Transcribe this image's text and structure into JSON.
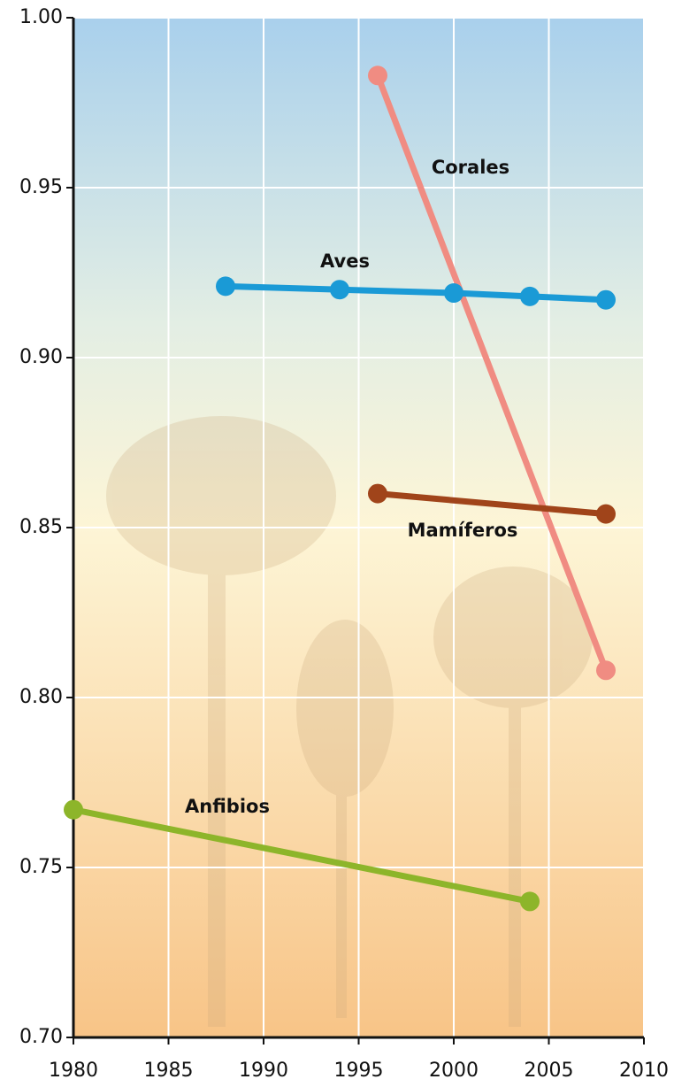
{
  "chart_data": {
    "type": "line",
    "xlim": [
      1980,
      2010
    ],
    "xticks": [
      1980,
      1985,
      1990,
      1995,
      2000,
      2005,
      2010
    ],
    "ylim": [
      0.7,
      1.0
    ],
    "yticks": [
      {
        "value": 0.7,
        "label": "0.70"
      },
      0.75,
      {
        "value": 0.8,
        "label": "0.80"
      },
      0.85,
      {
        "value": 0.9,
        "label": "0.90"
      },
      0.95,
      {
        "value": 1.0,
        "label": "1.00"
      }
    ],
    "grid": true,
    "series": [
      {
        "name": "Corales",
        "color": "#f08c82",
        "x": [
          1996,
          2008
        ],
        "values": [
          0.983,
          0.808
        ]
      },
      {
        "name": "Aves",
        "color": "#1a9ad6",
        "x": [
          1988,
          1994,
          2000,
          2004,
          2008
        ],
        "values": [
          0.921,
          0.92,
          0.919,
          0.918,
          0.917
        ]
      },
      {
        "name": "Mamíferos",
        "color": "#a0441a",
        "x": [
          1996,
          2008
        ],
        "values": [
          0.86,
          0.854
        ]
      },
      {
        "name": "Anfibios",
        "color": "#8db52a",
        "x": [
          1980,
          2004
        ],
        "values": [
          0.767,
          0.74
        ]
      }
    ]
  }
}
